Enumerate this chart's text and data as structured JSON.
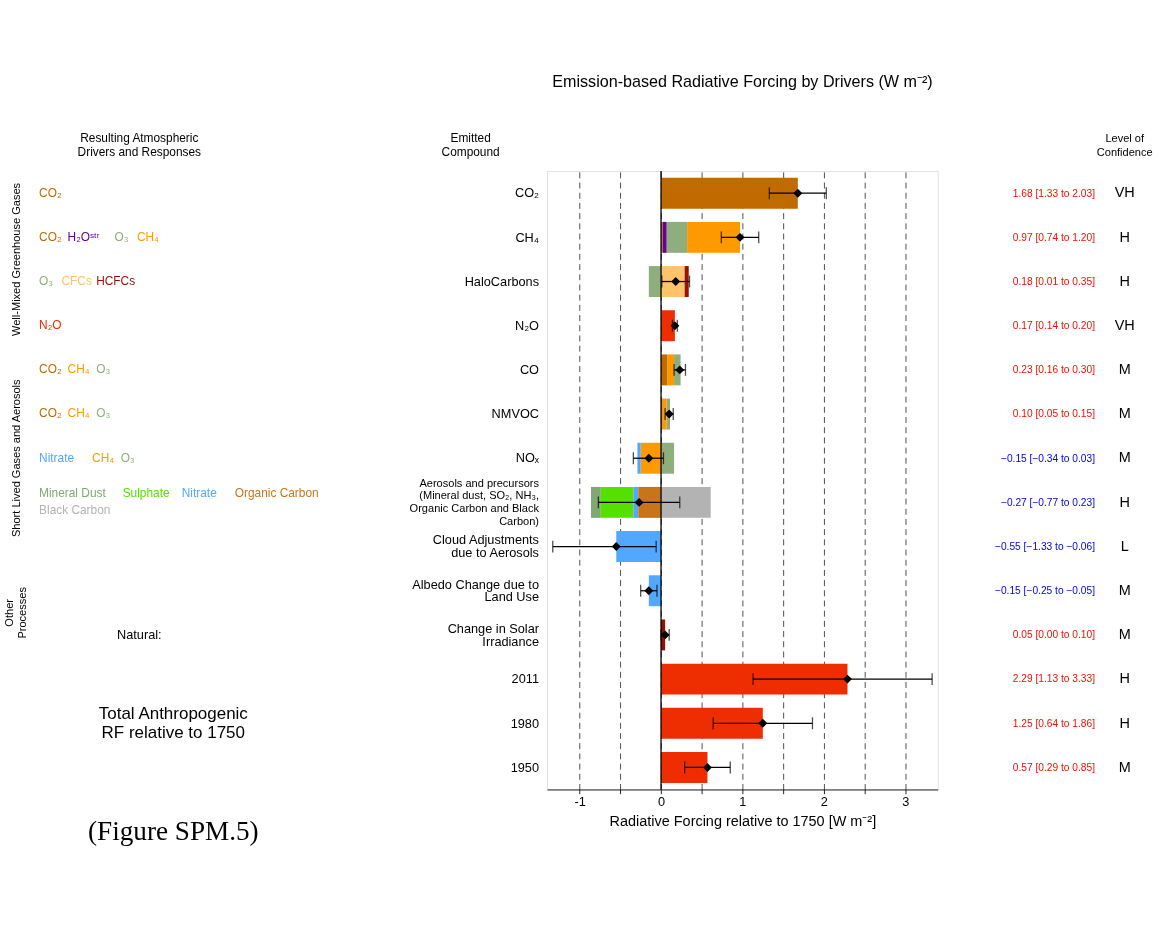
{
  "chart_data": {
    "type": "bar",
    "orientation": "horizontal",
    "title": "Emission-based Radiative Forcing by Drivers (W m⁻²)",
    "xlabel": "Radiative Forcing relative to 1750 [W m⁻²]",
    "categories": [
      "CO₂",
      "CH₄",
      "HaloCarbons",
      "N₂O",
      "CO",
      "NMVOC",
      "NOₓ",
      "Aerosols and precursors (Mineral dust, SO₂, NH₃, Organic Carbon and Black Carbon)",
      "Cloud Adjustments due to Aerosols",
      "Albedo Change due to Land Use",
      "Change in Solar Irradiance",
      "2011",
      "1980",
      "1950"
    ],
    "xlim": [
      -1.4,
      3.4
    ],
    "xticks": [
      -1,
      {
        "value": -0.5,
        "label": null
      },
      0,
      {
        "value": 0.5,
        "label": null
      },
      1,
      {
        "value": 1.5,
        "label": null
      },
      2,
      {
        "value": 2.5,
        "label": null
      },
      3
    ],
    "grid": "x",
    "marker": "diamond",
    "ref_lines": [
      {
        "axis": "x",
        "value": 0,
        "color": "#000000",
        "line_style": "solid"
      }
    ],
    "series": [
      {
        "name": "CO₂",
        "color": "#c06a00",
        "values": [
          1.68,
          0.02,
          null,
          null,
          0.08,
          0.02,
          null,
          null,
          null,
          null,
          null,
          null,
          null,
          null
        ],
        "base": [
          0,
          0,
          null,
          null,
          0,
          0,
          null,
          null,
          null,
          null,
          null,
          null,
          null,
          null
        ]
      },
      {
        "name": "H₂Oˢᵗʳ",
        "color": "#6a0099",
        "values": [
          null,
          0.05,
          null,
          null,
          null,
          null,
          null,
          null,
          null,
          null,
          null,
          null,
          null,
          null
        ],
        "base": [
          null,
          0.02,
          null,
          null,
          null,
          null,
          null,
          null,
          null,
          null,
          null,
          null,
          null,
          null
        ]
      },
      {
        "name": "O₃",
        "color": "#8fae7e",
        "values": [
          null,
          0.25,
          -0.15,
          null,
          0.08,
          0.04,
          0.16,
          null,
          null,
          null,
          null,
          null,
          null,
          null
        ],
        "base": [
          null,
          0.07,
          0,
          null,
          0.16,
          0.07,
          0,
          null,
          null,
          null,
          null,
          null,
          null,
          null
        ]
      },
      {
        "name": "CH₄",
        "color": "#ff9900",
        "values": [
          null,
          0.65,
          null,
          null,
          0.08,
          0.05,
          -0.25,
          null,
          null,
          null,
          null,
          null,
          null,
          null
        ],
        "base": [
          null,
          0.32,
          null,
          null,
          0.08,
          0.02,
          0,
          null,
          null,
          null,
          null,
          null,
          null,
          null
        ]
      },
      {
        "name": "CFCs",
        "color": "#ffc46a",
        "values": [
          null,
          null,
          0.29,
          null,
          null,
          null,
          null,
          null,
          null,
          null,
          null,
          null,
          null,
          null
        ],
        "base": [
          null,
          null,
          0,
          null,
          null,
          null,
          null,
          null,
          null,
          null,
          null,
          null,
          null,
          null
        ]
      },
      {
        "name": "HCFCs",
        "color": "#990f00",
        "values": [
          null,
          null,
          0.05,
          null,
          null,
          null,
          null,
          null,
          null,
          null,
          null,
          null,
          null,
          null
        ],
        "base": [
          null,
          null,
          0.29,
          null,
          null,
          null,
          null,
          null,
          null,
          null,
          null,
          null,
          null,
          null
        ]
      },
      {
        "name": "N₂O",
        "color": "#ee2d00",
        "values": [
          null,
          null,
          null,
          0.17,
          null,
          null,
          null,
          null,
          null,
          null,
          null,
          null,
          null,
          null
        ],
        "base": [
          null,
          null,
          null,
          0,
          null,
          null,
          null,
          null,
          null,
          null,
          null,
          null,
          null,
          null
        ]
      },
      {
        "name": "Mineral Dust",
        "color": "#7fa872",
        "values": [
          null,
          null,
          null,
          null,
          null,
          null,
          null,
          -0.12,
          null,
          null,
          null,
          null,
          null,
          null
        ],
        "base": [
          null,
          null,
          null,
          null,
          null,
          null,
          null,
          -0.74,
          null,
          null,
          null,
          null,
          null,
          null
        ]
      },
      {
        "name": "Sulphate",
        "color": "#55e000",
        "values": [
          null,
          null,
          null,
          null,
          null,
          null,
          null,
          -0.4,
          null,
          null,
          null,
          null,
          null,
          null
        ],
        "base": [
          null,
          null,
          null,
          null,
          null,
          null,
          null,
          -0.34,
          null,
          null,
          null,
          null,
          null,
          null
        ]
      },
      {
        "name": "Nitrate",
        "color": "#52a8ff",
        "values": [
          null,
          null,
          null,
          null,
          null,
          null,
          -0.04,
          -0.06,
          null,
          null,
          null,
          null,
          null,
          null
        ],
        "base": [
          null,
          null,
          null,
          null,
          null,
          null,
          -0.25,
          -0.28,
          null,
          null,
          null,
          null,
          null,
          null
        ]
      },
      {
        "name": "Organic Carbon",
        "color": "#c8741a",
        "values": [
          null,
          null,
          null,
          null,
          null,
          null,
          null,
          -0.28,
          null,
          null,
          null,
          null,
          null,
          null
        ],
        "base": [
          null,
          null,
          null,
          null,
          null,
          null,
          null,
          0,
          null,
          null,
          null,
          null,
          null,
          null
        ]
      },
      {
        "name": "Black Carbon",
        "color": "#b3b3b3",
        "values": [
          null,
          null,
          null,
          null,
          null,
          null,
          null,
          0.61,
          null,
          null,
          null,
          null,
          null,
          null
        ],
        "base": [
          null,
          null,
          null,
          null,
          null,
          null,
          null,
          0,
          null,
          null,
          null,
          null,
          null,
          null
        ]
      },
      {
        "color": "#52a8ff",
        "values": [
          null,
          null,
          null,
          null,
          null,
          null,
          null,
          null,
          -0.55,
          -0.15,
          null,
          null,
          null,
          null
        ],
        "base": [
          null,
          null,
          null,
          null,
          null,
          null,
          null,
          null,
          0,
          0,
          null,
          null,
          null,
          null
        ]
      },
      {
        "color": "#990f00",
        "values": [
          null,
          null,
          null,
          null,
          null,
          null,
          null,
          null,
          null,
          null,
          0.05,
          null,
          null,
          null
        ],
        "base": [
          null,
          null,
          null,
          null,
          null,
          null,
          null,
          null,
          null,
          null,
          0,
          null,
          null,
          null
        ]
      },
      {
        "color": "#ee2d00",
        "values": [
          null,
          null,
          null,
          null,
          null,
          null,
          null,
          null,
          null,
          null,
          null,
          2.29,
          1.25,
          0.57
        ],
        "base": [
          null,
          null,
          null,
          null,
          null,
          null,
          null,
          null,
          null,
          null,
          null,
          0,
          0,
          0
        ]
      },
      {
        "type": "scatter",
        "color": "#000000",
        "values": [
          1.68,
          0.97,
          0.18,
          0.17,
          0.23,
          0.1,
          -0.15,
          -0.27,
          -0.55,
          -0.15,
          0.05,
          2.29,
          1.25,
          0.57
        ],
        "errors": [
          [
            1.33,
            2.03
          ],
          [
            0.74,
            1.2
          ],
          [
            0.01,
            0.35
          ],
          [
            0.14,
            0.2
          ],
          [
            0.16,
            0.3
          ],
          [
            0.05,
            0.15
          ],
          [
            -0.34,
            0.03
          ],
          [
            -0.77,
            0.23
          ],
          [
            -1.33,
            -0.06
          ],
          [
            -0.25,
            -0.05
          ],
          [
            0.0,
            0.1
          ],
          [
            1.13,
            3.33
          ],
          [
            0.64,
            1.86
          ],
          [
            0.29,
            0.85
          ]
        ],
        "value_labels": [
          "1.68 [1.33 to 2.03]",
          "0.97 [0.74 to 1.20]",
          "0.18 [0.01 to 0.35]",
          "0.17 [0.14 to 0.20]",
          "0.23 [0.16 to 0.30]",
          "0.10 [0.05 to 0.15]",
          "−0.15 [−0.34 to 0.03]",
          "−0.27 [−0.77 to 0.23]",
          "−0.55 [−1.33 to −0.06]",
          "−0.15 [−0.25 to −0.05]",
          "0.05 [0.00 to 0.10]",
          "2.29 [1.13 to 3.33]",
          "1.25 [0.64 to 1.86]",
          "0.57 [0.29 to 0.85]"
        ]
      }
    ],
    "annotations": [
      "Emitted Compound",
      "Resulting Atmospheric Drivers and Responses",
      "Level of Confidence",
      "Well-Mixed Greenhouse Gases",
      "Short Lived Gases and Aerosols",
      "Other Processes",
      "Natural:",
      "Total Anthropogenic RF relative to 1750",
      "(Figure SPM.5)",
      "VH",
      "H",
      "H",
      "VH",
      "M",
      "M",
      "M",
      "H",
      "L",
      "M",
      "M",
      "H",
      "H",
      "M"
    ]
  }
}
